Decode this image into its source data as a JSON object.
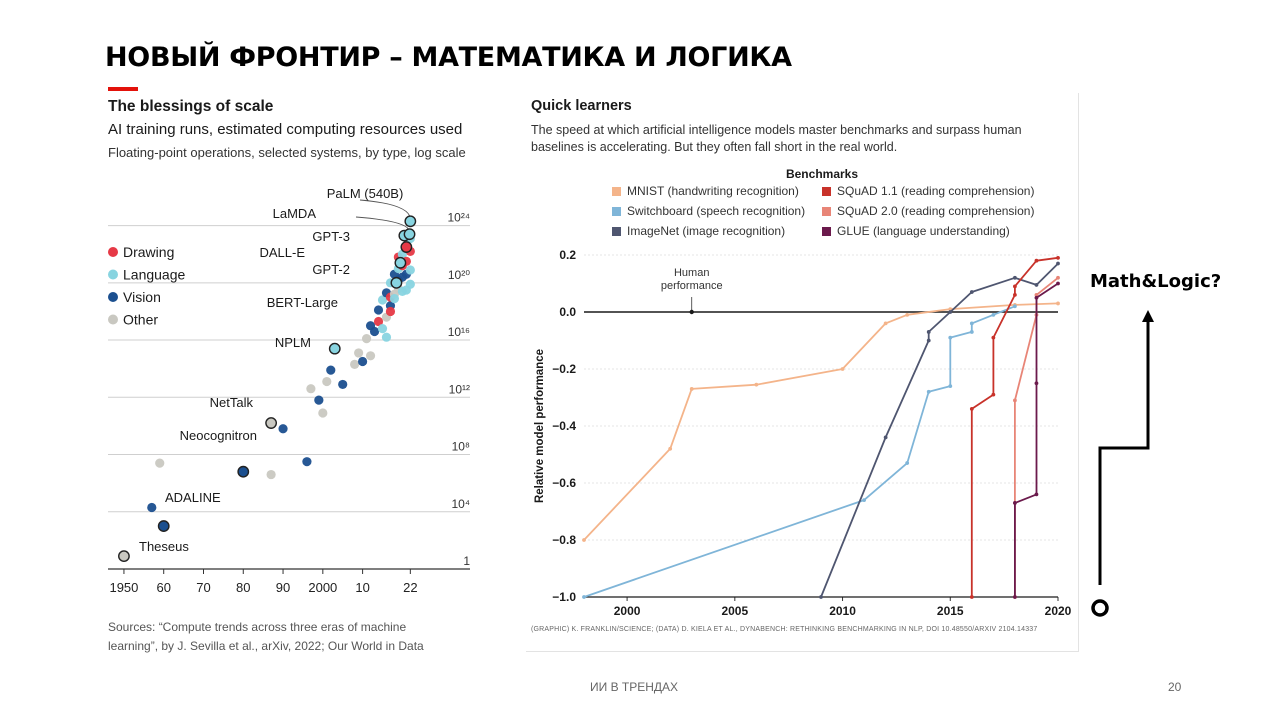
{
  "slide": {
    "title": "НОВЫЙ ФРОНТИР – МАТЕМАТИКА И ЛОГИКА",
    "footer": "ИИ В ТРЕНДАХ",
    "page_number": "20",
    "annotation": "Math&Logic?",
    "colors": {
      "accent": "#e3120b",
      "text": "#000000"
    }
  },
  "chart_data": [
    {
      "type": "scatter",
      "title": "The blessings of scale",
      "subtitle": "AI training runs, estimated computing resources used",
      "subtitle2": "Floating-point operations, selected systems, by type, log scale",
      "sources": "Sources: “Compute trends across three eras of machine learning”, by J. Sevilla et al., arXiv, 2022; Our World in Data",
      "x_ticks": [
        "1950",
        "60",
        "70",
        "80",
        "90",
        "2000",
        "10",
        "22"
      ],
      "x_tick_values": [
        1950,
        1960,
        1970,
        1980,
        1990,
        2000,
        2010,
        2022
      ],
      "y_ticks": [
        {
          "label": "1",
          "log10": 0
        },
        {
          "label": "10⁴",
          "log10": 4
        },
        {
          "label": "10⁸",
          "log10": 8
        },
        {
          "label": "10¹²",
          "log10": 12
        },
        {
          "label": "10¹⁶",
          "log10": 16
        },
        {
          "label": "10²⁰",
          "log10": 20
        },
        {
          "label": "10²⁴",
          "log10": 24
        }
      ],
      "xlim": [
        1947,
        2037
      ],
      "ylim_log10": [
        0,
        24.6
      ],
      "legend": [
        {
          "name": "Drawing",
          "color": "#e63946"
        },
        {
          "name": "Language",
          "color": "#88d4e0"
        },
        {
          "name": "Vision",
          "color": "#1b4f8f"
        },
        {
          "name": "Other",
          "color": "#c9c8c1"
        }
      ],
      "annotations": [
        {
          "label": "PaLM (540B)",
          "x": 2022,
          "y": 24.3
        },
        {
          "label": "LaMDA",
          "x": 2021.8,
          "y": 23.4
        },
        {
          "label": "GPT-3",
          "x": 2020.5,
          "y": 23.3
        },
        {
          "label": "DALL-E",
          "x": 2021,
          "y": 22.5
        },
        {
          "label": "GPT-2",
          "x": 2019.5,
          "y": 21.4
        },
        {
          "label": "BERT-Large",
          "x": 2018.5,
          "y": 20
        },
        {
          "label": "NPLM",
          "x": 2003,
          "y": 15.4
        },
        {
          "label": "NetTalk",
          "x": 1987,
          "y": 10.2
        },
        {
          "label": "Neocognitron",
          "x": 1980,
          "y": 6.8
        },
        {
          "label": "ADALINE",
          "x": 1960,
          "y": 3
        },
        {
          "label": "Theseus",
          "x": 1950,
          "y": 0.9
        }
      ],
      "points": [
        {
          "x": 1957,
          "y": 4.3,
          "c": "Vision"
        },
        {
          "x": 1959,
          "y": 7.4,
          "c": "Other"
        },
        {
          "x": 1987,
          "y": 6.6,
          "c": "Other"
        },
        {
          "x": 1990,
          "y": 9.8,
          "c": "Vision"
        },
        {
          "x": 1996,
          "y": 7.5,
          "c": "Vision"
        },
        {
          "x": 1997,
          "y": 12.6,
          "c": "Other"
        },
        {
          "x": 1999,
          "y": 11.8,
          "c": "Vision"
        },
        {
          "x": 2000,
          "y": 10.9,
          "c": "Other"
        },
        {
          "x": 2001,
          "y": 13.1,
          "c": "Other"
        },
        {
          "x": 2002,
          "y": 13.9,
          "c": "Vision"
        },
        {
          "x": 2005,
          "y": 12.9,
          "c": "Vision"
        },
        {
          "x": 2008,
          "y": 14.3,
          "c": "Other"
        },
        {
          "x": 2009,
          "y": 15.1,
          "c": "Other"
        },
        {
          "x": 2010,
          "y": 14.5,
          "c": "Vision"
        },
        {
          "x": 2011,
          "y": 16.1,
          "c": "Other"
        },
        {
          "x": 2012,
          "y": 17.0,
          "c": "Vision"
        },
        {
          "x": 2012,
          "y": 14.9,
          "c": "Other"
        },
        {
          "x": 2013,
          "y": 16.6,
          "c": "Vision"
        },
        {
          "x": 2014,
          "y": 18.1,
          "c": "Vision"
        },
        {
          "x": 2014,
          "y": 17.3,
          "c": "Drawing"
        },
        {
          "x": 2015,
          "y": 18.8,
          "c": "Language"
        },
        {
          "x": 2015,
          "y": 16.8,
          "c": "Language"
        },
        {
          "x": 2016,
          "y": 19.3,
          "c": "Vision"
        },
        {
          "x": 2016,
          "y": 17.6,
          "c": "Other"
        },
        {
          "x": 2016,
          "y": 16.2,
          "c": "Language"
        },
        {
          "x": 2017,
          "y": 20.0,
          "c": "Language"
        },
        {
          "x": 2017,
          "y": 18.4,
          "c": "Vision"
        },
        {
          "x": 2017,
          "y": 19.0,
          "c": "Drawing"
        },
        {
          "x": 2018,
          "y": 20.6,
          "c": "Vision"
        },
        {
          "x": 2018,
          "y": 19.2,
          "c": "Other"
        },
        {
          "x": 2018,
          "y": 18.9,
          "c": "Language"
        },
        {
          "x": 2019,
          "y": 21.0,
          "c": "Language"
        },
        {
          "x": 2019,
          "y": 20.2,
          "c": "Vision"
        },
        {
          "x": 2019,
          "y": 21.8,
          "c": "Drawing"
        },
        {
          "x": 2019,
          "y": 19.6,
          "c": "Other"
        },
        {
          "x": 2020,
          "y": 21.2,
          "c": "Drawing"
        },
        {
          "x": 2020,
          "y": 22.0,
          "c": "Language"
        },
        {
          "x": 2020,
          "y": 20.4,
          "c": "Vision"
        },
        {
          "x": 2020,
          "y": 19.4,
          "c": "Language"
        },
        {
          "x": 2021,
          "y": 22.6,
          "c": "Language"
        },
        {
          "x": 2021,
          "y": 21.5,
          "c": "Drawing"
        },
        {
          "x": 2021,
          "y": 20.6,
          "c": "Vision"
        },
        {
          "x": 2021,
          "y": 19.5,
          "c": "Language"
        },
        {
          "x": 2022,
          "y": 23.1,
          "c": "Language"
        },
        {
          "x": 2022,
          "y": 22.2,
          "c": "Drawing"
        },
        {
          "x": 2022,
          "y": 20.9,
          "c": "Language"
        },
        {
          "x": 2022,
          "y": 19.9,
          "c": "Language"
        },
        {
          "x": 2017,
          "y": 18.0,
          "c": "Drawing"
        }
      ],
      "highlighted": [
        {
          "x": 1950,
          "y": 0.9,
          "c": "Other"
        },
        {
          "x": 1960,
          "y": 3.0,
          "c": "Vision"
        },
        {
          "x": 1980,
          "y": 6.8,
          "c": "Vision"
        },
        {
          "x": 1987,
          "y": 10.2,
          "c": "Other"
        },
        {
          "x": 2003,
          "y": 15.4,
          "c": "Language"
        },
        {
          "x": 2018.5,
          "y": 20.0,
          "c": "Language"
        },
        {
          "x": 2019.5,
          "y": 21.4,
          "c": "Language"
        },
        {
          "x": 2021,
          "y": 22.5,
          "c": "Drawing"
        },
        {
          "x": 2020.5,
          "y": 23.3,
          "c": "Language"
        },
        {
          "x": 2021.8,
          "y": 23.4,
          "c": "Language"
        },
        {
          "x": 2022,
          "y": 24.3,
          "c": "Language"
        }
      ]
    },
    {
      "type": "line",
      "title": "Quick learners",
      "description": "The speed at which artificial intelligence models master benchmarks and surpass human baselines is accelerating. But they often fall short in the real world.",
      "legend_title": "Benchmarks",
      "ylabel": "Relative model performance",
      "xlim": [
        1998,
        2020
      ],
      "ylim": [
        -1.0,
        0.2
      ],
      "x_ticks": [
        2000,
        2005,
        2010,
        2015,
        2020
      ],
      "y_ticks": [
        0.2,
        0.0,
        -0.2,
        -0.4,
        -0.6,
        -0.8,
        -1.0
      ],
      "y_tick_labels": [
        "0.2",
        "0.0",
        "−0.2",
        "−0.4",
        "−0.6",
        "−0.8",
        "−1.0"
      ],
      "x_tick_labels": [
        "2000",
        "2005",
        "2010",
        "2015",
        "2020"
      ],
      "human_label": "Human performance",
      "human_label_lines": [
        "Human",
        "performance"
      ],
      "human_marker_x": 2003,
      "credit": "(GRAPHIC) K. FRANKLIN/SCIENCE; (DATA) D. KIELA ET AL., DYNABENCH: RETHINKING BENCHMARKING IN NLP, DOI 10.48550/ARXIV 2104.14337",
      "series": [
        {
          "name": "MNIST (handwriting recognition)",
          "color": "#f4b48a",
          "x": [
            1998,
            2002,
            2003,
            2006,
            2010,
            2012,
            2013,
            2015,
            2018,
            2020
          ],
          "y": [
            -0.8,
            -0.48,
            -0.27,
            -0.255,
            -0.2,
            -0.04,
            -0.01,
            0.01,
            0.025,
            0.03
          ]
        },
        {
          "name": "Switchboard (speech recognition)",
          "color": "#7fb5d8",
          "x": [
            1998,
            2011,
            2013,
            2014,
            2015,
            2015,
            2016,
            2016,
            2017,
            2018
          ],
          "y": [
            -1.0,
            -0.66,
            -0.53,
            -0.28,
            -0.26,
            -0.09,
            -0.07,
            -0.04,
            -0.01,
            0.02
          ]
        },
        {
          "name": "ImageNet (image recognition)",
          "color": "#4f5670",
          "x": [
            2009,
            2012,
            2014,
            2014,
            2015,
            2016,
            2018,
            2019,
            2020
          ],
          "y": [
            -1.0,
            -0.44,
            -0.1,
            -0.07,
            0.0,
            0.07,
            0.12,
            0.095,
            0.17
          ]
        },
        {
          "name": "SQuAD 1.1 (reading comprehension)",
          "color": "#c8322a",
          "x": [
            2016,
            2016,
            2017,
            2017,
            2018,
            2018,
            2019,
            2020
          ],
          "y": [
            -1.0,
            -0.34,
            -0.29,
            -0.09,
            0.06,
            0.09,
            0.18,
            0.19
          ]
        },
        {
          "name": "SQuAD 2.0 (reading comprehension)",
          "color": "#e88577",
          "x": [
            2018,
            2018,
            2019,
            2019,
            2020
          ],
          "y": [
            -1.0,
            -0.31,
            -0.01,
            0.06,
            0.12
          ]
        },
        {
          "name": "GLUE (language understanding)",
          "color": "#6b1a4c",
          "x": [
            2018,
            2018,
            2019,
            2019,
            2019,
            2020
          ],
          "y": [
            -1.0,
            -0.67,
            -0.64,
            -0.25,
            0.05,
            0.1
          ]
        }
      ]
    }
  ]
}
